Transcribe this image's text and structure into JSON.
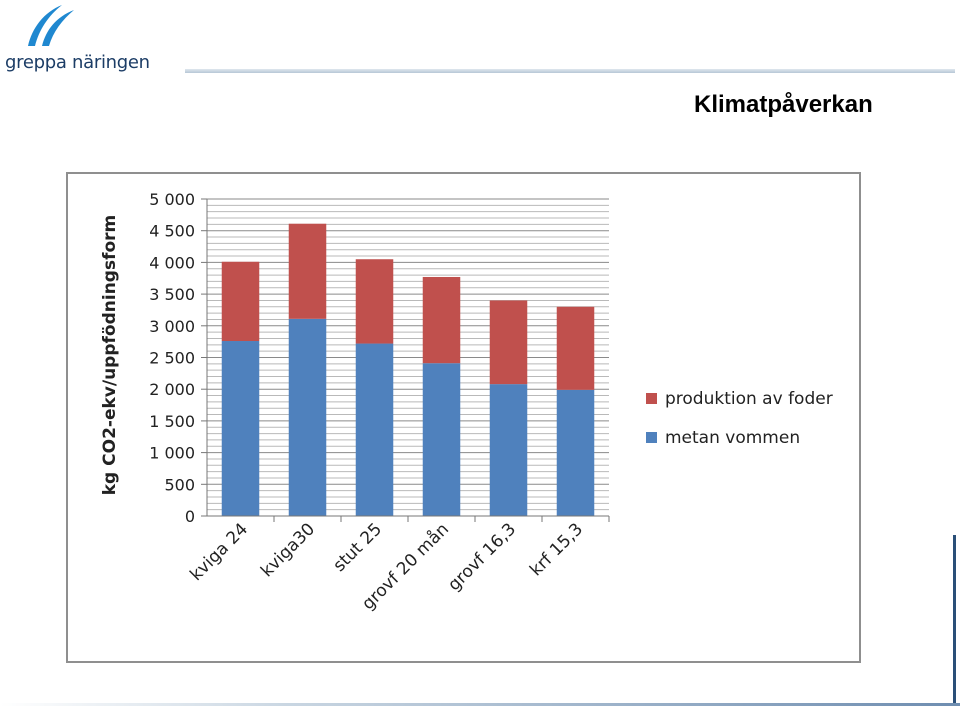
{
  "header": {
    "brand": "greppa näringen",
    "slide_title": "Klimatpåverkan"
  },
  "colors": {
    "metan": "#4f81bd",
    "foder": "#c0504d",
    "brand": "#1f88d0",
    "brand_text": "#1c3d66"
  },
  "icons": {
    "logo": "greppa-naringen-swoosh-logo"
  },
  "chart_data": {
    "type": "bar",
    "stacked": true,
    "ylabel": "kg CO2-ekv/uppfödningsform",
    "ylim": [
      0,
      5000
    ],
    "y_ticks": [
      "0",
      "500",
      "1 000",
      "1 500",
      "2 000",
      "2 500",
      "3 000",
      "3 500",
      "4 000",
      "4 500",
      "5 000"
    ],
    "y_tick_values": [
      0,
      500,
      1000,
      1500,
      2000,
      2500,
      3000,
      3500,
      4000,
      4500,
      5000
    ],
    "grid": true,
    "legend_position": "right",
    "categories": [
      "kviga 24",
      "kviga30",
      "stut 25",
      "grovf 20 mån",
      "grovf 16,3",
      "krf 15,3"
    ],
    "series": [
      {
        "name": "metan vommen",
        "color": "#4f81bd",
        "values": [
          2760,
          3110,
          2720,
          2410,
          2080,
          1990
        ]
      },
      {
        "name": "produktion av foder",
        "color": "#c0504d",
        "values": [
          1250,
          1500,
          1330,
          1360,
          1320,
          1310
        ]
      }
    ]
  }
}
